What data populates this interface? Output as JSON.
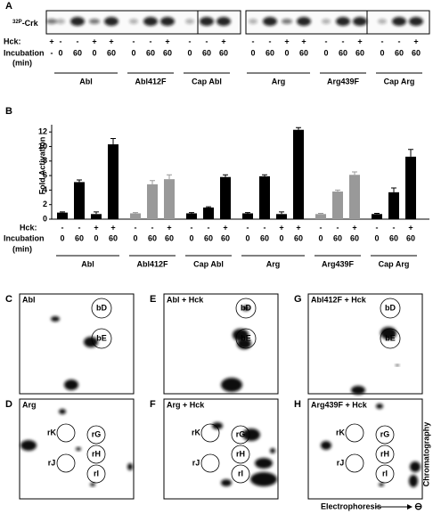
{
  "panel_a": {
    "letter": "A",
    "probe_sup": "32P",
    "probe": "-Crk",
    "hck_label": "Hck:",
    "incubation_label": "Incubation",
    "min_label": "(min)",
    "control": {
      "hck": "+",
      "incubation": "-"
    },
    "groups": [
      {
        "name": "Abl",
        "hck": [
          "-",
          "-",
          "+",
          "+"
        ],
        "incubation": [
          "0",
          "60",
          "0",
          "60"
        ]
      },
      {
        "name": "Abl412F",
        "hck": [
          "-",
          "-",
          "+"
        ],
        "incubation": [
          "0",
          "60",
          "60"
        ]
      },
      {
        "name": "Cap Abl",
        "hck": [
          "-",
          "-",
          "+"
        ],
        "incubation": [
          "0",
          "60",
          "60"
        ]
      },
      {
        "name": "Arg",
        "hck": [
          "-",
          "-",
          "+",
          "+"
        ],
        "incubation": [
          "0",
          "60",
          "0",
          "60"
        ]
      },
      {
        "name": "Arg439F",
        "hck": [
          "-",
          "-",
          "+"
        ],
        "incubation": [
          "0",
          "60",
          "60"
        ]
      },
      {
        "name": "Cap Arg",
        "hck": [
          "-",
          "-",
          "+"
        ],
        "incubation": [
          "0",
          "60",
          "60"
        ]
      }
    ]
  },
  "chart_data": {
    "type": "bar",
    "letter": "B",
    "ylabel": "Fold Activation",
    "ylim": [
      0,
      13
    ],
    "yticks": [
      0,
      2,
      4,
      6,
      8,
      10,
      12
    ],
    "hck_label": "Hck:",
    "incubation_label": "Incubation",
    "min_label": "(min)",
    "groups": [
      {
        "name": "Abl",
        "color": "#000000",
        "hck": [
          "-",
          "-",
          "+",
          "+"
        ],
        "incubation": [
          "0",
          "60",
          "0",
          "60"
        ],
        "values": [
          0.9,
          5.1,
          0.7,
          10.3
        ],
        "errors": [
          0.1,
          0.3,
          0.3,
          0.8
        ]
      },
      {
        "name": "Abl412F",
        "color": "#999999",
        "hck": [
          "-",
          "-",
          "+"
        ],
        "incubation": [
          "0",
          "60",
          "60"
        ],
        "values": [
          0.8,
          4.8,
          5.5
        ],
        "errors": [
          0.1,
          0.5,
          0.6
        ]
      },
      {
        "name": "Cap Abl",
        "color": "#000000",
        "hck": [
          "-",
          "-",
          "+"
        ],
        "incubation": [
          "0",
          "60",
          "60"
        ],
        "values": [
          0.8,
          1.6,
          5.8
        ],
        "errors": [
          0.1,
          0.1,
          0.3
        ]
      },
      {
        "name": "Arg",
        "color": "#000000",
        "hck": [
          "-",
          "-",
          "+",
          "+"
        ],
        "incubation": [
          "0",
          "60",
          "0",
          "60"
        ],
        "values": [
          0.8,
          5.9,
          0.7,
          12.3
        ],
        "errors": [
          0.1,
          0.2,
          0.3,
          0.3
        ]
      },
      {
        "name": "Arg439F",
        "color": "#999999",
        "hck": [
          "-",
          "-",
          "+"
        ],
        "incubation": [
          "0",
          "60",
          "60"
        ],
        "values": [
          0.7,
          3.8,
          6.1
        ],
        "errors": [
          0.1,
          0.2,
          0.4
        ]
      },
      {
        "name": "Cap Arg",
        "color": "#000000",
        "hck": [
          "-",
          "-",
          "+"
        ],
        "incubation": [
          "0",
          "60",
          "60"
        ],
        "values": [
          0.7,
          3.7,
          8.6
        ],
        "errors": [
          0.1,
          0.6,
          1.0
        ]
      }
    ]
  },
  "maps": {
    "panels": [
      {
        "letter": "C",
        "title": "Abl",
        "circles": [
          "bD",
          "bE"
        ]
      },
      {
        "letter": "E",
        "title": "Abl + Hck",
        "circles": [
          "bD",
          "bE"
        ]
      },
      {
        "letter": "G",
        "title": "Abl412F + Hck",
        "circles": [
          "bD",
          "bE"
        ]
      },
      {
        "letter": "D",
        "title": "Arg",
        "circles": [
          "rK",
          "rG",
          "rJ",
          "rH",
          "rI"
        ]
      },
      {
        "letter": "F",
        "title": "Arg + Hck",
        "circles": [
          "rK",
          "rG",
          "rJ",
          "rH",
          "rI"
        ]
      },
      {
        "letter": "H",
        "title": "Arg439F + Hck",
        "circles": [
          "rK",
          "rG",
          "rJ",
          "rH",
          "rI"
        ]
      }
    ],
    "x_axis": "Electrophoresis",
    "x_end": "⊖",
    "y_axis": "Chromatography"
  }
}
